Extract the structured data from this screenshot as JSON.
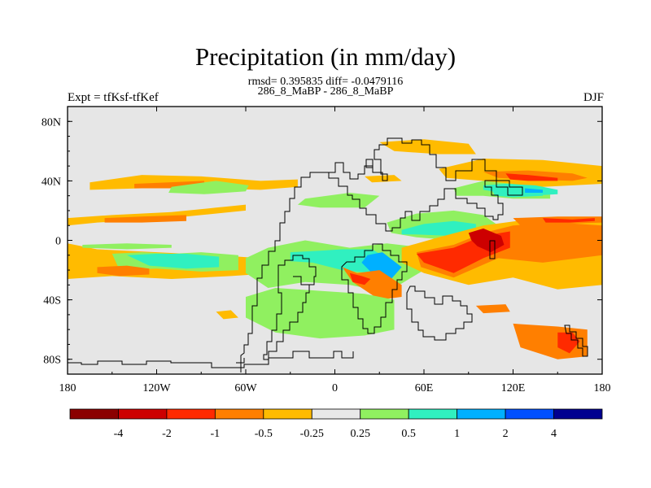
{
  "chart_data": {
    "type": "filled-contour-map",
    "title": "Precipitation (in mm/day)",
    "stats": "rmsd= 0.395835 diff= -0.0479116",
    "center_label": "286_8_MaBP - 286_8_MaBP",
    "left_label": "Expt = tfKsf-tfKef",
    "right_label": "DJF",
    "x_axis": {
      "range": [
        -180,
        180
      ],
      "ticks": [
        {
          "value": -180,
          "label": "180"
        },
        {
          "value": -120,
          "label": "120W"
        },
        {
          "value": -60,
          "label": "60W"
        },
        {
          "value": 0,
          "label": "0"
        },
        {
          "value": 60,
          "label": "60E"
        },
        {
          "value": 120,
          "label": "120E"
        },
        {
          "value": 180,
          "label": "180"
        }
      ]
    },
    "y_axis": {
      "range": [
        -90,
        90
      ],
      "ticks": [
        {
          "value": 80,
          "label": "80N"
        },
        {
          "value": 40,
          "label": "40N"
        },
        {
          "value": 0,
          "label": "0"
        },
        {
          "value": -40,
          "label": "40S"
        },
        {
          "value": -80,
          "label": "80S"
        }
      ]
    },
    "colorbar": {
      "colors": [
        "#8b0000",
        "#cd0000",
        "#ff2a00",
        "#ff7f00",
        "#ffbb00",
        "#e8e8e8",
        "#90f060",
        "#30f0c0",
        "#00b0ff",
        "#0050ff",
        "#000090"
      ],
      "labels": [
        "-4",
        "-2",
        "-1",
        "-0.5",
        "-0.25",
        "0.25",
        "0.5",
        "1",
        "2",
        "4"
      ]
    },
    "colors": {
      "background": "#e6e6e6",
      "coast": "#000000"
    },
    "regions": [
      {
        "level": -0.25,
        "lon": [
          -165,
          -130,
          -90,
          -50,
          -25,
          -25,
          -50,
          -90,
          -130,
          -165
        ],
        "lat": [
          39,
          44,
          43,
          40,
          41,
          36,
          34,
          35,
          35,
          34
        ]
      },
      {
        "level": -0.5,
        "lon": [
          -135,
          -112,
          -88,
          -88,
          -112,
          -135
        ],
        "lat": [
          38,
          39,
          40,
          36,
          35,
          35
        ]
      },
      {
        "level": -0.25,
        "lon": [
          -180,
          -150,
          -110,
          -80,
          -60,
          -60,
          -90,
          -120,
          -160,
          -180
        ],
        "lat": [
          15,
          17,
          19,
          22,
          24,
          20,
          17,
          14,
          12,
          10
        ]
      },
      {
        "level": -0.5,
        "lon": [
          -155,
          -130,
          -100,
          -100,
          -130,
          -155
        ],
        "lat": [
          15,
          16,
          17,
          13,
          12,
          12
        ]
      },
      {
        "level": -0.25,
        "lon": [
          -180,
          -160,
          -120,
          -80,
          -50,
          -40,
          -40,
          -70,
          -110,
          -150,
          -180
        ],
        "lat": [
          -2,
          -6,
          -8,
          -10,
          -12,
          -14,
          -22,
          -24,
          -26,
          -24,
          -26
        ]
      },
      {
        "level": 0.5,
        "lon": [
          -150,
          -130,
          -110,
          -90,
          -65,
          -65,
          -90,
          -120,
          -145
        ],
        "lat": [
          -9,
          -8,
          -9,
          -8,
          -10,
          -20,
          -21,
          -19,
          -20
        ]
      },
      {
        "level": 1,
        "lon": [
          -140,
          -120,
          -100,
          -78,
          -78,
          -100,
          -125
        ],
        "lat": [
          -10,
          -9,
          -9,
          -11,
          -18,
          -19,
          -17
        ]
      },
      {
        "level": -0.5,
        "lon": [
          -160,
          -140,
          -125,
          -125,
          -145,
          -160
        ],
        "lat": [
          -18,
          -17,
          -19,
          -23,
          -24,
          -22
        ]
      },
      {
        "level": 0.5,
        "lon": [
          -170,
          -140,
          -110,
          -110,
          -140,
          -170
        ],
        "lat": [
          -3,
          -2,
          -3,
          -5,
          -6,
          -5
        ]
      },
      {
        "level": 0.5,
        "lon": [
          -110,
          -80,
          -58,
          -60,
          -88,
          -112
        ],
        "lat": [
          36,
          40,
          37,
          33,
          31,
          32
        ]
      },
      {
        "level": 0.5,
        "lon": [
          -20,
          10,
          30,
          20,
          -10,
          -25
        ],
        "lat": [
          28,
          32,
          30,
          22,
          22,
          24
        ]
      },
      {
        "level": 0.5,
        "lon": [
          -60,
          -45,
          -20,
          10,
          35,
          60,
          60,
          35,
          10,
          -20,
          -45,
          -60
        ],
        "lat": [
          -12,
          -5,
          0,
          -5,
          -2,
          -5,
          -20,
          -35,
          -30,
          -28,
          -32,
          -22
        ]
      },
      {
        "level": 1,
        "lon": [
          -30,
          -10,
          5,
          25,
          35,
          25,
          5,
          -15,
          -30
        ],
        "lat": [
          -8,
          -7,
          -6,
          -6,
          -12,
          -22,
          -20,
          -15,
          -14
        ]
      },
      {
        "level": 2,
        "lon": [
          22,
          32,
          45,
          38,
          25,
          18
        ],
        "lat": [
          -10,
          -8,
          -18,
          -26,
          -22,
          -15
        ]
      },
      {
        "level": -0.5,
        "lon": [
          5,
          15,
          30,
          45,
          45,
          30,
          12
        ],
        "lat": [
          -18,
          -22,
          -20,
          -30,
          -38,
          -40,
          -28
        ]
      },
      {
        "level": -1,
        "lon": [
          10,
          18,
          24,
          20,
          12
        ],
        "lat": [
          -22,
          -24,
          -26,
          -30,
          -28
        ]
      },
      {
        "level": 0.5,
        "lon": [
          -60,
          -40,
          -10,
          20,
          40,
          40,
          20,
          -10,
          -40,
          -60
        ],
        "lat": [
          -38,
          -32,
          -34,
          -36,
          -40,
          -60,
          -64,
          -66,
          -62,
          -52
        ]
      },
      {
        "level": 0.5,
        "lon": [
          35,
          55,
          80,
          100,
          110,
          100,
          80,
          55,
          38
        ],
        "lat": [
          12,
          18,
          20,
          17,
          10,
          5,
          0,
          2,
          5
        ]
      },
      {
        "level": 1,
        "lon": [
          45,
          60,
          80,
          95,
          95,
          78,
          55,
          45
        ],
        "lat": [
          7,
          11,
          13,
          11,
          6,
          3,
          4,
          4
        ]
      },
      {
        "level": 0.5,
        "lon": [
          80,
          100,
          125,
          145,
          145,
          120,
          100,
          82
        ],
        "lat": [
          35,
          40,
          38,
          34,
          28,
          28,
          30,
          30
        ]
      },
      {
        "level": 1,
        "lon": [
          105,
          125,
          140,
          140,
          120,
          108
        ],
        "lat": [
          35,
          34,
          33,
          30,
          29,
          30
        ]
      },
      {
        "level": -0.25,
        "lon": [
          45,
          70,
          100,
          130,
          160,
          180,
          180,
          150,
          120,
          90,
          60,
          45
        ],
        "lat": [
          -5,
          2,
          10,
          14,
          14,
          12,
          -30,
          -33,
          -25,
          -30,
          -22,
          -15
        ]
      },
      {
        "level": -0.5,
        "lon": [
          55,
          80,
          100,
          120,
          150,
          180,
          180,
          140,
          110,
          80,
          58
        ],
        "lat": [
          -8,
          -3,
          5,
          10,
          12,
          10,
          -10,
          -15,
          -12,
          -25,
          -18
        ]
      },
      {
        "level": -1,
        "lon": [
          55,
          80,
          100,
          118,
          118,
          100,
          80,
          60
        ],
        "lat": [
          -9,
          -5,
          3,
          6,
          -5,
          -12,
          -22,
          -15
        ]
      },
      {
        "level": -2,
        "lon": [
          90,
          100,
          112,
          114,
          105,
          96,
          92
        ],
        "lat": [
          5,
          8,
          3,
          -3,
          -8,
          -4,
          0
        ]
      },
      {
        "level": -0.5,
        "lon": [
          120,
          150,
          180,
          180,
          150,
          125
        ],
        "lat": [
          15,
          16,
          16,
          12,
          11,
          10
        ]
      },
      {
        "level": -1,
        "lon": [
          140,
          160,
          175,
          175,
          158,
          142
        ],
        "lat": [
          15,
          14,
          15,
          13,
          12,
          12
        ]
      },
      {
        "level": -0.25,
        "lon": [
          70,
          100,
          140,
          180,
          180,
          140,
          100,
          75
        ],
        "lat": [
          48,
          55,
          54,
          50,
          38,
          36,
          40,
          42
        ]
      },
      {
        "level": -0.5,
        "lon": [
          100,
          130,
          160,
          170,
          160,
          130,
          110
        ],
        "lat": [
          46,
          47,
          45,
          42,
          40,
          41,
          42
        ]
      },
      {
        "level": -1,
        "lon": [
          115,
          130,
          150,
          150,
          130,
          118
        ],
        "lat": [
          45,
          44,
          42,
          40,
          40,
          41
        ]
      },
      {
        "level": 1,
        "lon": [
          100,
          115,
          135,
          150,
          150,
          130,
          112,
          100
        ],
        "lat": [
          37,
          38,
          37,
          34,
          31,
          30,
          32,
          34
        ]
      },
      {
        "level": 2,
        "lon": [
          128,
          140,
          140,
          128
        ],
        "lat": [
          35,
          34,
          32,
          32
        ]
      },
      {
        "level": -0.25,
        "lon": [
          30,
          60,
          90,
          95,
          70,
          40
        ],
        "lat": [
          66,
          68,
          65,
          58,
          58,
          60
        ]
      },
      {
        "level": -0.5,
        "lon": [
          120,
          150,
          170,
          170,
          150,
          125
        ],
        "lat": [
          -56,
          -58,
          -60,
          -78,
          -80,
          -72
        ]
      },
      {
        "level": -1,
        "lon": [
          150,
          160,
          165,
          158,
          150
        ],
        "lat": [
          -62,
          -62,
          -68,
          -76,
          -72
        ]
      },
      {
        "level": -0.5,
        "lon": [
          95,
          115,
          118,
          100
        ],
        "lat": [
          -44,
          -43,
          -48,
          -49
        ]
      },
      {
        "level": -0.25,
        "lon": [
          -80,
          -70,
          -65,
          -75
        ],
        "lat": [
          -48,
          -47,
          -52,
          -53
        ]
      },
      {
        "level": -0.25,
        "lon": [
          20,
          40,
          45,
          25
        ],
        "lat": [
          43,
          44,
          40,
          39
        ]
      }
    ]
  }
}
